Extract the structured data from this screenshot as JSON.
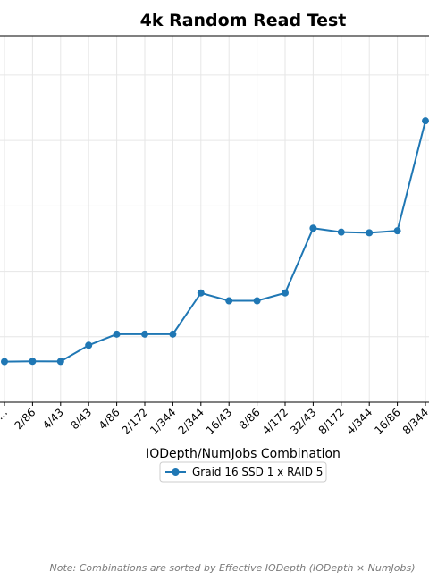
{
  "chart_data": {
    "type": "line",
    "title": "4k Random Read Test",
    "xlabel": "IODepth/NumJobs Combination",
    "ylabel": "",
    "categories": [
      "1/...",
      "2/86",
      "4/43",
      "8/43",
      "4/86",
      "2/172",
      "1/344",
      "2/344",
      "16/43",
      "8/86",
      "4/172",
      "32/43",
      "8/172",
      "4/344",
      "16/86",
      "8/344",
      "..."
    ],
    "series": [
      {
        "name": "Graid 16 SSD 1 x RAID 5",
        "color": "#1f77b4",
        "values": [
          62,
          62.5,
          62.3,
          87,
          104,
          104,
          104,
          167,
          155,
          155,
          167,
          266,
          260,
          259,
          262,
          430,
          null
        ]
      }
    ],
    "ylim": [
      0,
      560
    ],
    "grid": true,
    "legend_position": "below-axis",
    "note": "Note: Combinations are sorted by Effective IODepth (IODepth × NumJobs)"
  }
}
